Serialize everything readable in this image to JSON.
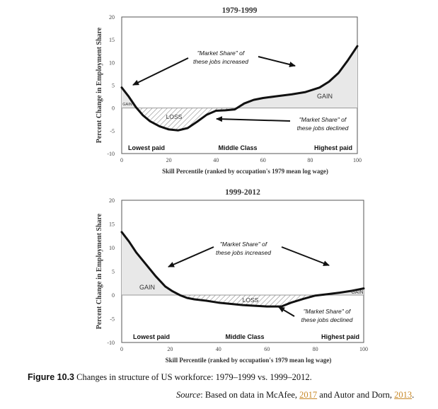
{
  "chart_data": [
    {
      "type": "area",
      "title": "1979-1999",
      "xlabel": "Skill Percentile (ranked by occupation's 1979 mean log wage)",
      "ylabel": "Percent Change in Employment Share",
      "xlim": [
        0,
        100
      ],
      "ylim": [
        -10,
        20
      ],
      "xticks": [
        "0",
        "20",
        "40",
        "60",
        "80",
        "100"
      ],
      "yticks": [
        "20",
        "15",
        "10",
        "5",
        "0",
        "-5",
        "-10"
      ],
      "series": [
        {
          "name": "Change in employment share",
          "x": [
            0,
            3,
            6,
            9,
            12,
            16,
            20,
            24,
            28,
            32,
            36,
            40,
            44,
            48,
            52,
            56,
            60,
            66,
            72,
            78,
            84,
            88,
            92,
            96,
            100
          ],
          "y": [
            4.5,
            2.5,
            0.2,
            -1.6,
            -2.9,
            -4.0,
            -4.7,
            -4.9,
            -4.4,
            -3.0,
            -1.5,
            -0.6,
            -0.5,
            -0.3,
            1.0,
            1.8,
            2.2,
            2.6,
            3.0,
            3.5,
            4.5,
            5.8,
            7.7,
            10.5,
            13.6
          ]
        }
      ],
      "region_labels": [
        "GAIN",
        "LOSS",
        "GAIN"
      ],
      "annotations": [
        {
          "text": "\"Market Share\" of these jobs increased"
        },
        {
          "text": "\"Market Share\" of these jobs declined"
        }
      ],
      "category_labels": [
        "Lowest paid",
        "Middle Class",
        "Highest paid"
      ]
    },
    {
      "type": "area",
      "title": "1999-2012",
      "xlabel": "Skill Percentile (ranked by occupation's 1979 mean log wage)",
      "ylabel": "Percent Change in Employment Share",
      "xlim": [
        0,
        100
      ],
      "ylim": [
        -10,
        20
      ],
      "xticks": [
        "0",
        "20",
        "40",
        "60",
        "80",
        "100"
      ],
      "yticks": [
        "20",
        "15",
        "10",
        "5",
        "0",
        "-5",
        "-10"
      ],
      "series": [
        {
          "name": "Change in employment share",
          "x": [
            0,
            3,
            6,
            10,
            14,
            18,
            21,
            24,
            27,
            30,
            35,
            40,
            50,
            60,
            66,
            70,
            75,
            80,
            85,
            90,
            95,
            100
          ],
          "y": [
            13.3,
            11.3,
            9.0,
            6.5,
            4.0,
            1.8,
            0.8,
            0.0,
            -0.6,
            -0.9,
            -1.2,
            -1.6,
            -2.1,
            -2.4,
            -2.4,
            -1.6,
            -0.8,
            -0.1,
            0.2,
            0.5,
            0.9,
            1.4
          ]
        }
      ],
      "region_labels": [
        "GAIN",
        "LOSS",
        "GAIN"
      ],
      "annotations": [
        {
          "text": "\"Market Share\" of these jobs increased"
        },
        {
          "text": "\"Market Share\" of these jobs declined"
        }
      ],
      "category_labels": [
        "Lowest paid",
        "Middle Class",
        "Highest paid"
      ]
    }
  ],
  "caption": {
    "label": "Figure 10.3",
    "text": " Changes in structure of US workforce: 1979–1999 vs. 1999–2012."
  },
  "source": {
    "label": "Source",
    "text1": ": Based on data in McAfee, ",
    "ref1": "2017",
    "text2": " and Autor and Dorn, ",
    "ref2": "2013",
    "text3": "."
  }
}
